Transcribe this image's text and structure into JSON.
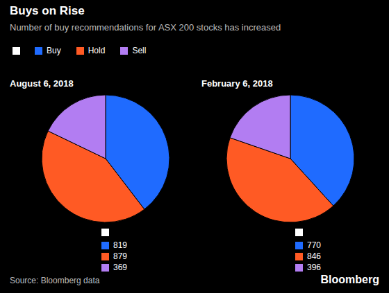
{
  "title": "Buys on Rise",
  "subtitle": "Number of buy recommendations for ASX 200 stocks has increased",
  "source": "Source: Bloomberg data",
  "brand": "Bloomberg",
  "chart_data": [
    {
      "type": "pie",
      "title": "August 6, 2018",
      "categories": [
        "Buy",
        "Hold",
        "Sell"
      ],
      "values": [
        819,
        879,
        369
      ],
      "colors": [
        "#1f6bff",
        "#ff5a24",
        "#b27df2"
      ]
    },
    {
      "type": "pie",
      "title": "February 6, 2018",
      "categories": [
        "Buy",
        "Hold",
        "Sell"
      ],
      "values": [
        770,
        846,
        396
      ],
      "colors": [
        "#1f6bff",
        "#ff5a24",
        "#b27df2"
      ]
    }
  ]
}
